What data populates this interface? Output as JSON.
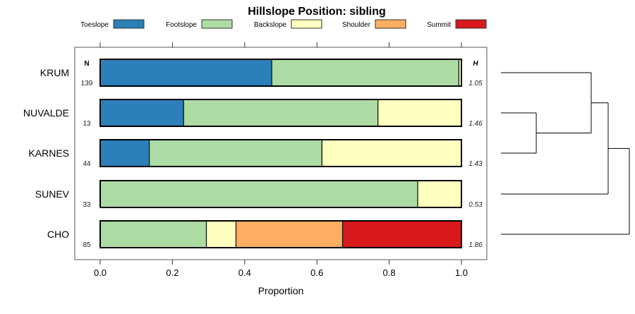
{
  "chart_data": {
    "type": "bar",
    "orientation": "horizontal-stacked",
    "title": "Hillslope Position: sibling",
    "xlabel": "Proportion",
    "ylabel": "",
    "xlim": [
      0,
      1
    ],
    "xticks": [
      "0.0",
      "0.2",
      "0.4",
      "0.6",
      "0.8",
      "1.0"
    ],
    "xtick_values": [
      0,
      0.2,
      0.4,
      0.6,
      0.8,
      1.0
    ],
    "n_header": "N",
    "h_header": "H",
    "legend": {
      "placement": "top",
      "entries": [
        {
          "name": "Toeslope",
          "color": "#2C7FB8"
        },
        {
          "name": "Footslope",
          "color": "#ACDCA4"
        },
        {
          "name": "Backslope",
          "color": "#FFFFBF"
        },
        {
          "name": "Shoulder",
          "color": "#FDAE61"
        },
        {
          "name": "Summit",
          "color": "#D7191C"
        }
      ]
    },
    "categories": [
      "KRUM",
      "NUVALDE",
      "KARNES",
      "SUNEV",
      "CHO"
    ],
    "n": [
      "139",
      "13",
      "44",
      "33",
      "85"
    ],
    "h": [
      "1.05",
      "1.46",
      "1.43",
      "0.53",
      "1.86"
    ],
    "series": [
      {
        "name": "Toeslope",
        "values": [
          0.475,
          0.231,
          0.136,
          0,
          0
        ]
      },
      {
        "name": "Footslope",
        "values": [
          0.518,
          0.538,
          0.478,
          0.879,
          0.294
        ]
      },
      {
        "name": "Backslope",
        "values": [
          0.007,
          0.231,
          0.386,
          0.121,
          0.082
        ]
      },
      {
        "name": "Shoulder",
        "values": [
          0,
          0,
          0,
          0,
          0.295
        ]
      },
      {
        "name": "Summit",
        "values": [
          0,
          0,
          0,
          0,
          0.329
        ]
      }
    ],
    "dendrogram": {
      "merges": [
        {
          "a": "NUVALDE",
          "b": "KARNES",
          "height": 0.275
        },
        {
          "a": "KRUM",
          "b": "m1",
          "height": 0.703
        },
        {
          "a": "SUNEV",
          "b": "m2",
          "height": 0.835
        },
        {
          "a": "CHO",
          "b": "m3",
          "height": 1.0
        }
      ]
    }
  }
}
